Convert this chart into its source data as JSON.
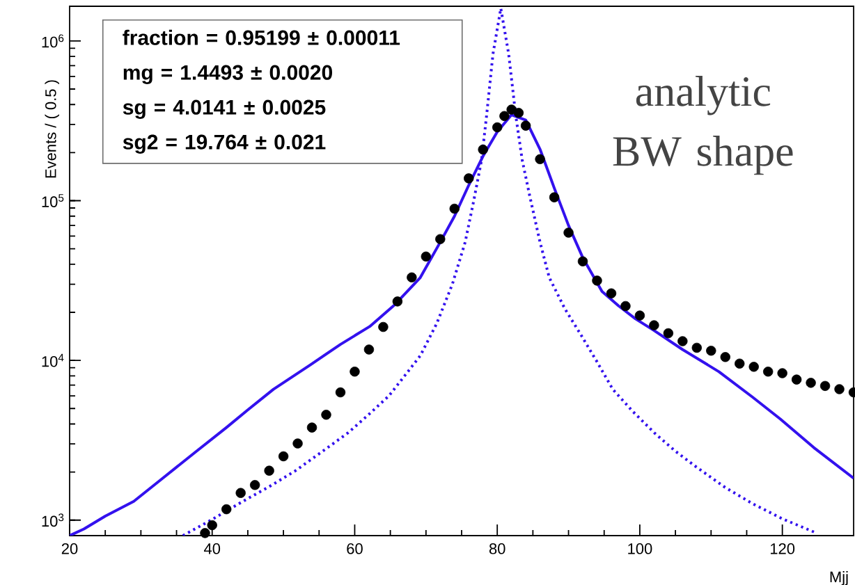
{
  "chart_data": {
    "type": "scatter",
    "xlabel": "Mjj",
    "ylabel": "Events / ( 0.5 )",
    "xlim": [
      20,
      130
    ],
    "ylim": [
      800,
      1650000
    ],
    "log": "y",
    "xticks": [
      20,
      40,
      60,
      80,
      100,
      120
    ],
    "yticks": [
      {
        "value": 1000,
        "label": "10$^{3}$"
      },
      {
        "value": 10000,
        "label": "10$^{4}$"
      },
      {
        "value": 100000,
        "label": "10$^{5}$"
      },
      {
        "value": 1000000,
        "label": "10$^{6}$"
      }
    ],
    "series": [
      {
        "type": "line",
        "color": "#3311ee",
        "marker": "none",
        "line_style": "dotted",
        "x": [
          35.9,
          40,
          44.3,
          48,
          51.7,
          55.5,
          59.1,
          62,
          64.8,
          67,
          69.2,
          71.5,
          73.7,
          75.5,
          76.7,
          77.8,
          78.5,
          79.4,
          80.5,
          81.6,
          82.6,
          83.5,
          84.5,
          86,
          87.3,
          89.5,
          91.6,
          94,
          96.2,
          99,
          102.1,
          105,
          108,
          112,
          115.8,
          120,
          124.8
        ],
        "values": [
          800,
          1010,
          1310,
          1620,
          2040,
          2700,
          3530,
          4600,
          6000,
          8000,
          10700,
          17000,
          30000,
          55000,
          100000,
          180000,
          340000,
          830000,
          1600000,
          830000,
          340000,
          180000,
          110000,
          55000,
          33000,
          21000,
          14800,
          9800,
          6600,
          4800,
          3500,
          2700,
          2140,
          1600,
          1270,
          1020,
          830
        ]
      },
      {
        "type": "line",
        "color": "#3311ee",
        "marker": "none",
        "line_style": "solid",
        "x": [
          20,
          22,
          25,
          29,
          33,
          37.7,
          42,
          45,
          48.6,
          53.8,
          58,
          62.1,
          65.6,
          69.2,
          72,
          74,
          76,
          78,
          80,
          82,
          84,
          86,
          88,
          90,
          92,
          94.7,
          97,
          99.4,
          102,
          106,
          111.1,
          115.8,
          119.7,
          124.4,
          130
        ],
        "values": [
          800,
          880,
          1060,
          1310,
          1820,
          2680,
          3800,
          4900,
          6600,
          9400,
          12600,
          16300,
          22300,
          33000,
          55000,
          80000,
          125000,
          190000,
          270000,
          345000,
          320000,
          210000,
          120000,
          70000,
          44000,
          27000,
          22000,
          18200,
          15400,
          11700,
          8500,
          5900,
          4300,
          2850,
          1830
        ]
      },
      {
        "type": "scatter",
        "color": "#000000",
        "marker": "circle",
        "x": [
          39,
          40,
          42,
          44,
          46,
          48,
          50,
          52,
          54,
          56,
          58,
          60,
          62,
          64,
          66,
          68,
          70,
          72,
          74,
          76,
          78,
          80,
          81,
          82,
          83,
          84,
          86,
          88,
          90,
          92,
          94,
          96,
          98,
          100,
          102,
          104,
          106,
          108,
          110,
          112,
          114,
          116,
          118,
          120,
          122,
          124,
          126,
          128,
          130
        ],
        "values": [
          830,
          930,
          1170,
          1480,
          1660,
          2040,
          2510,
          3020,
          3800,
          4570,
          6310,
          8510,
          11700,
          16200,
          23400,
          33100,
          44700,
          57500,
          89100,
          138000,
          209000,
          288000,
          339000,
          372000,
          355000,
          295000,
          182000,
          105000,
          63100,
          41700,
          31600,
          26300,
          21900,
          19100,
          16600,
          14800,
          13200,
          12000,
          11500,
          10500,
          9550,
          9120,
          8510,
          8320,
          7590,
          7240,
          6920,
          6610,
          6310
        ]
      }
    ],
    "annotations": [
      "fraction =  0.95199 ± 0.00011",
      "mg =  1.4493 ± 0.0020",
      "sg =  4.0141 ± 0.0025",
      "sg2 =  19.764 ± 0.021",
      "analytic BW shape"
    ]
  }
}
